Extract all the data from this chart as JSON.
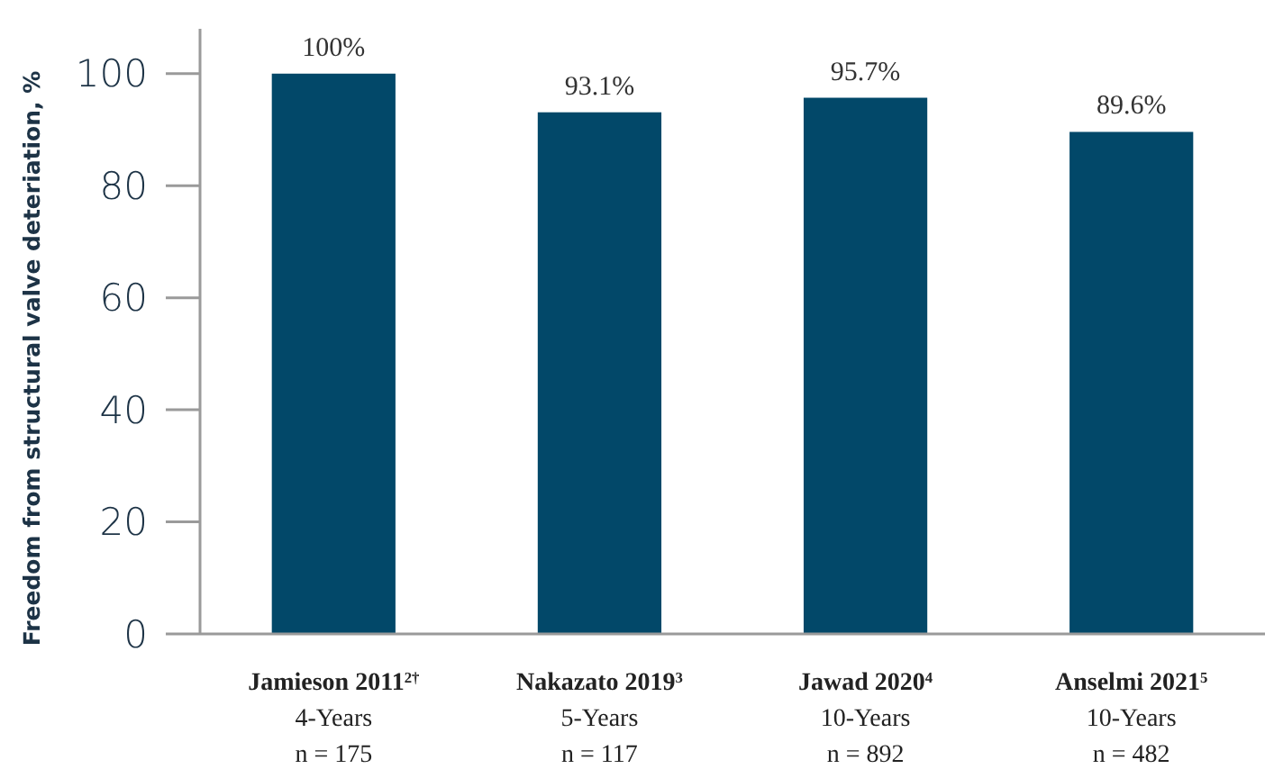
{
  "chart_data": {
    "type": "bar",
    "ylabel": "Freedom from structural valve deteriation, %",
    "categories": [
      "Jamieson 2011$^{2†}$\n4-Years\nn = 175",
      "Nakazato 2019$^{3}$\n5-Years\nn = 117",
      "Jawad 2020$^{4}$\n10-Years\nn = 892",
      "Anselmi 2021$^{5}$\n10-Years\nn = 482"
    ],
    "values": [
      100,
      93.1,
      95.7,
      89.6
    ],
    "value_labels": [
      "100%",
      "93.1%",
      "95.7%",
      "89.6%"
    ],
    "color": "#024869",
    "ylim": [
      0,
      108
    ],
    "yticks": [
      0,
      20,
      40,
      60,
      80,
      100
    ],
    "grid": false
  }
}
